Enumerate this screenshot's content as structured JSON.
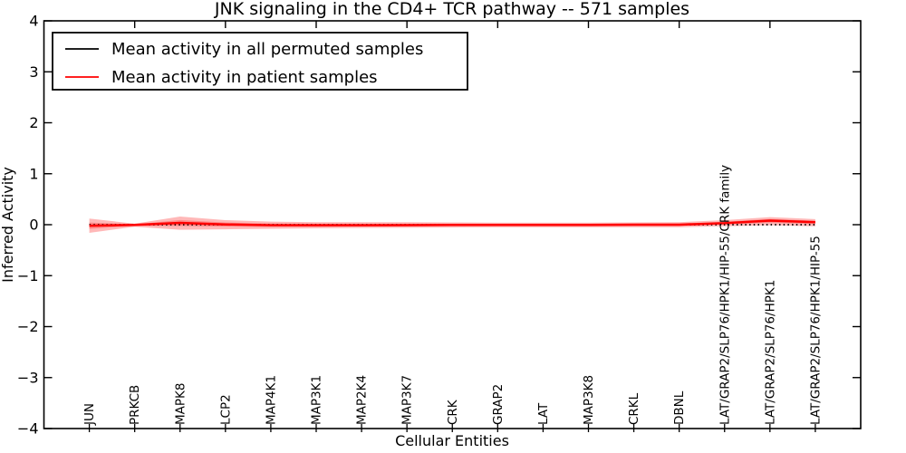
{
  "chart_data": {
    "type": "line",
    "title": "JNK signaling in the CD4+ TCR pathway -- 571 samples",
    "xlabel": "Cellular Entities",
    "ylabel": "Inferred Activity",
    "ylim": [
      -4,
      4
    ],
    "yticks": [
      -4,
      -3,
      -2,
      -1,
      0,
      1,
      2,
      3,
      4
    ],
    "grid": false,
    "legend_position": "upper left",
    "categories": [
      "JUN",
      "PRKCB",
      "MAPK8",
      "LCP2",
      "MAP4K1",
      "MAP3K1",
      "MAP2K4",
      "MAP3K7",
      "CRK",
      "GRAP2",
      "LAT",
      "MAP3K8",
      "CRKL",
      "DBNL",
      "LAT/GRAP2/SLP76/HPK1/HIP-55/CRK family",
      "LAT/GRAP2/SLP76/HPK1",
      "LAT/GRAP2/SLP76/HPK1/HIP-55"
    ],
    "series": [
      {
        "name": "Mean activity in all permuted samples",
        "color": "#000000",
        "style": "dotted",
        "values": [
          0,
          0,
          0,
          0,
          0,
          0,
          0,
          0,
          0,
          0,
          0,
          0,
          0,
          0,
          0,
          0,
          0
        ]
      },
      {
        "name": "Mean activity in patient samples",
        "color": "#ff0000",
        "style": "solid",
        "values": [
          -0.02,
          -0.005,
          0.035,
          0.005,
          -0.01,
          -0.01,
          -0.01,
          -0.008,
          -0.005,
          -0.005,
          -0.005,
          -0.005,
          0.0,
          0.0,
          0.03,
          0.08,
          0.05
        ]
      }
    ],
    "band": {
      "name": "patient-samples-confidence-band",
      "color": "#ff0000",
      "opacity": 0.28,
      "upper": [
        0.12,
        0.02,
        0.16,
        0.09,
        0.06,
        0.05,
        0.05,
        0.05,
        0.045,
        0.04,
        0.04,
        0.04,
        0.045,
        0.05,
        0.09,
        0.15,
        0.11
      ],
      "lower": [
        -0.16,
        -0.04,
        -0.1,
        -0.09,
        -0.08,
        -0.07,
        -0.065,
        -0.06,
        -0.055,
        -0.05,
        -0.05,
        -0.05,
        -0.05,
        -0.05,
        -0.03,
        -0.01,
        -0.03
      ]
    }
  },
  "colors": {
    "background": "#ffffff",
    "frame": "#000000",
    "permuted_line": "#000000",
    "patient_line": "#ff0000"
  }
}
